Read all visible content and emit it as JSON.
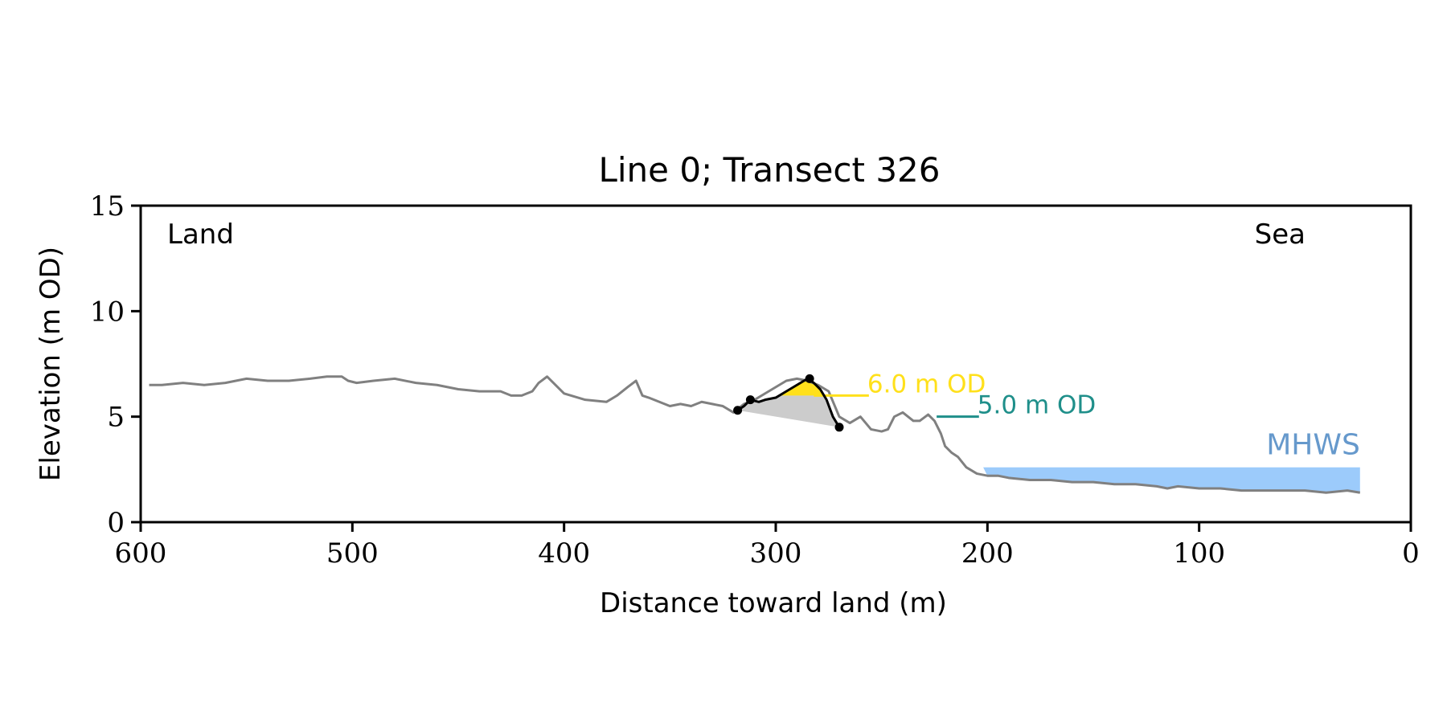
{
  "chart_data": {
    "type": "line",
    "title": "Line 0; Transect 326",
    "xlabel": "Distance toward land (m)",
    "ylabel": "Elevation (m OD)",
    "xlim": [
      600,
      0
    ],
    "ylim": [
      0,
      15
    ],
    "x_ticks": [
      600,
      500,
      400,
      300,
      200,
      100,
      0
    ],
    "y_ticks": [
      0,
      5,
      10,
      15
    ],
    "grid": false,
    "annotations": {
      "left_corner": "Land",
      "right_corner": "Sea",
      "level_6": "6.0 m OD",
      "level_5": "5.0 m OD",
      "mhws": "MHWS"
    },
    "colors": {
      "profile": "#808080",
      "dune": "#000000",
      "dune_fill": "#cccccc",
      "above_6_fill": "#ffe01b",
      "level_6": "#ffe01b",
      "level_5": "#1f8f8a",
      "mhws_fill": "#9ccbfb",
      "mhws_text": "#6699cc"
    },
    "series": [
      {
        "role": "profile",
        "x": [
          596,
          590,
          580,
          570,
          560,
          550,
          540,
          530,
          520,
          512,
          505,
          502,
          498,
          490,
          480,
          470,
          460,
          450,
          440,
          430,
          425,
          420,
          415,
          412,
          408,
          405,
          400,
          390,
          380,
          375,
          370,
          366,
          363,
          360,
          355,
          350,
          345,
          340,
          335,
          330,
          325,
          320,
          315,
          310,
          305,
          300,
          295,
          290,
          285,
          280,
          275,
          270,
          265,
          260,
          255,
          250,
          247,
          244,
          240,
          235,
          232,
          228,
          225,
          222,
          220,
          217,
          214,
          210,
          205,
          200,
          195,
          190,
          180,
          170,
          160,
          150,
          140,
          130,
          120,
          115,
          110,
          100,
          90,
          80,
          70,
          60,
          50,
          40,
          30,
          24
        ],
        "y": [
          6.5,
          6.5,
          6.6,
          6.5,
          6.6,
          6.8,
          6.7,
          6.7,
          6.8,
          6.9,
          6.9,
          6.7,
          6.6,
          6.7,
          6.8,
          6.6,
          6.5,
          6.3,
          6.2,
          6.2,
          6.0,
          6.0,
          6.2,
          6.6,
          6.9,
          6.6,
          6.1,
          5.8,
          5.7,
          6.0,
          6.4,
          6.7,
          6.0,
          5.9,
          5.7,
          5.5,
          5.6,
          5.5,
          5.7,
          5.6,
          5.5,
          5.2,
          5.6,
          5.8,
          6.1,
          6.4,
          6.7,
          6.8,
          6.7,
          6.5,
          6.2,
          5.0,
          4.7,
          5.0,
          4.4,
          4.3,
          4.4,
          5.0,
          5.2,
          4.8,
          4.8,
          5.1,
          4.8,
          4.2,
          3.6,
          3.3,
          3.1,
          2.6,
          2.3,
          2.2,
          2.2,
          2.1,
          2.0,
          2.0,
          1.9,
          1.9,
          1.8,
          1.8,
          1.7,
          1.6,
          1.7,
          1.6,
          1.6,
          1.5,
          1.5,
          1.5,
          1.5,
          1.4,
          1.5,
          1.4
        ]
      },
      {
        "role": "dune",
        "x": [
          318,
          315,
          312,
          308,
          305,
          300,
          295,
          290,
          285,
          282,
          279,
          276,
          273,
          270
        ],
        "y": [
          5.3,
          5.5,
          5.8,
          5.7,
          5.8,
          5.9,
          6.2,
          6.5,
          6.8,
          6.6,
          6.3,
          5.8,
          5.0,
          4.5
        ]
      }
    ],
    "dune_points": {
      "x": [
        318,
        312,
        284,
        270
      ],
      "y": [
        5.3,
        5.8,
        6.8,
        4.5
      ]
    },
    "reference_lines": {
      "od_6": {
        "y": 6.0,
        "x": [
          282,
          256
        ]
      },
      "od_5": {
        "y": 5.0,
        "x": [
          224,
          204
        ]
      }
    },
    "mhws": {
      "y": 2.6,
      "x": [
        202,
        24
      ]
    }
  }
}
